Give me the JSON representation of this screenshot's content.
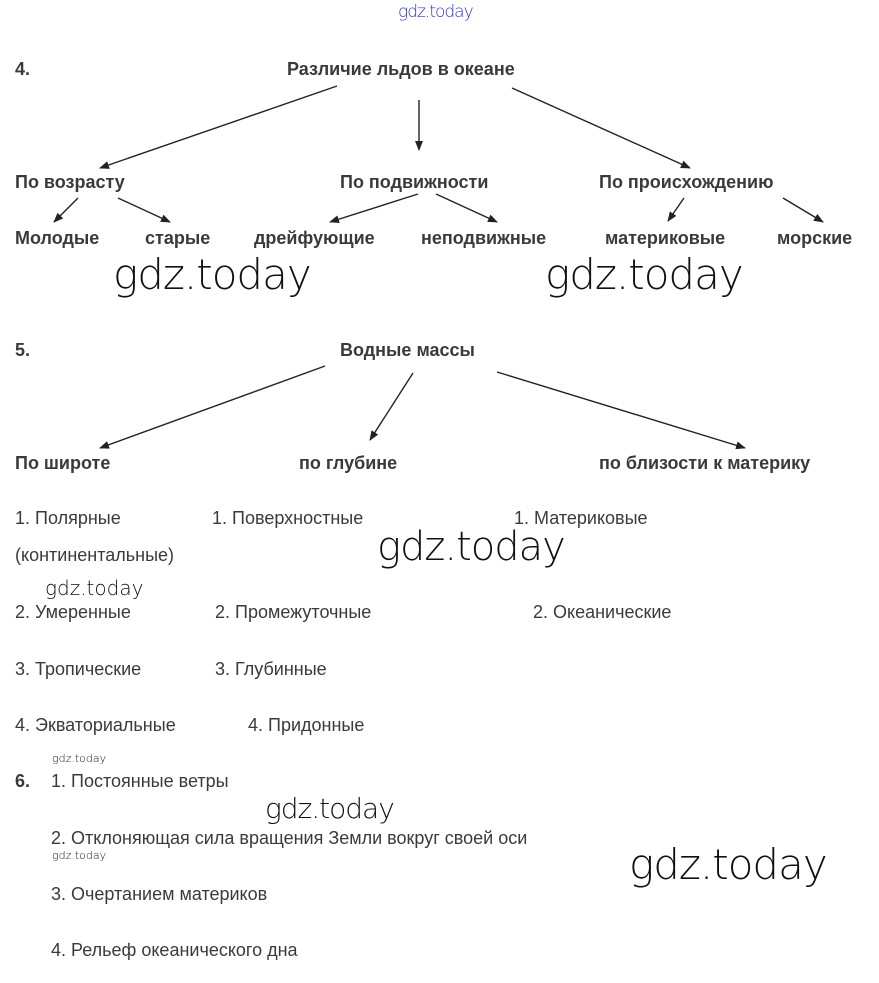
{
  "watermark": "gdz.today",
  "watermark_header_color": "#3333cc",
  "task4": {
    "number": "4.",
    "root": "Различие льдов в океане",
    "categories": [
      {
        "label": "По возрасту",
        "children": [
          "Молодые",
          "старые"
        ]
      },
      {
        "label": "По подвижности",
        "children": [
          "дрейфующие",
          "неподвижные"
        ]
      },
      {
        "label": "По происхождению",
        "children": [
          "материковые",
          "морские"
        ]
      }
    ]
  },
  "task5": {
    "number": "5.",
    "root": "Водные массы",
    "categories": [
      {
        "label": "По широте",
        "items": [
          "1. Полярные",
          "(континентальные)",
          "2. Умеренные",
          "3. Тропические",
          "4. Экваториальные"
        ]
      },
      {
        "label": "по глубине",
        "items": [
          "1. Поверхностные",
          "2. Промежуточные",
          "3. Глубинные",
          "4. Придонные"
        ]
      },
      {
        "label": "по близости к материку",
        "items": [
          "1. Материковые",
          "2. Океанические"
        ]
      }
    ]
  },
  "task6": {
    "number": "6.",
    "items": [
      "1. Постоянные ветры",
      "2. Отклоняющая сила вращения Земли вокруг своей оси",
      "3. Очертанием материков",
      "4. Рельеф океанического дна"
    ]
  }
}
